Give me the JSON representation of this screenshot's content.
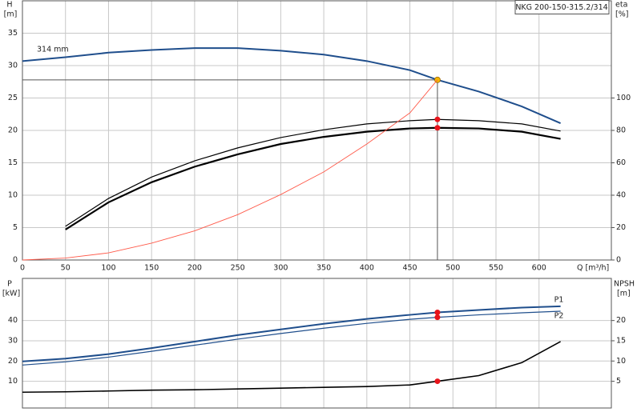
{
  "chart_data": [
    {
      "type": "line",
      "title": "NKG 200-150-315.2/314",
      "annotation": "314 mm",
      "y_label": "H",
      "y_unit": "[m]",
      "y2_label": "eta",
      "y2_unit": "[%]",
      "x_label": "Q [m³/h]",
      "xlim": [
        0,
        684
      ],
      "xticks": [
        0,
        50,
        100,
        150,
        200,
        250,
        300,
        350,
        400,
        450,
        500,
        550,
        600
      ],
      "ylim": [
        0,
        40
      ],
      "yticks": [
        0,
        5,
        10,
        15,
        20,
        25,
        30,
        35
      ],
      "y2lim": [
        0,
        160
      ],
      "y2ticks": [
        0,
        20,
        40,
        60,
        80,
        100
      ],
      "grid": true,
      "duty_point": {
        "x": 482,
        "y": 27.8
      },
      "series": [
        {
          "color": "#1f4e8c",
          "width": 2,
          "marker_color": "#f5b800",
          "x": [
            0,
            50,
            100,
            150,
            200,
            250,
            300,
            350,
            400,
            450,
            482,
            530,
            580,
            625
          ],
          "values": [
            30.7,
            31.3,
            32.0,
            32.4,
            32.7,
            32.7,
            32.3,
            31.7,
            30.7,
            29.3,
            27.8,
            26.0,
            23.7,
            21.1
          ]
        },
        {
          "color": "#000000",
          "width": 1.2,
          "axis": "y2",
          "marker_color": "#e8141b",
          "x": [
            50,
            100,
            150,
            200,
            250,
            300,
            350,
            400,
            450,
            482,
            530,
            580,
            625
          ],
          "values": [
            20.8,
            38,
            51.2,
            61.2,
            69.2,
            75.6,
            80.4,
            84,
            86,
            86.8,
            86,
            84,
            79.6
          ]
        },
        {
          "color": "#000000",
          "width": 2.2,
          "axis": "y2",
          "marker_color": "#e8141b",
          "x": [
            50,
            100,
            150,
            200,
            250,
            300,
            350,
            400,
            450,
            482,
            530,
            580,
            625
          ],
          "values": [
            18.8,
            35.6,
            48,
            57.6,
            65.2,
            71.6,
            76,
            79.2,
            81.2,
            81.6,
            81.2,
            79.2,
            74.8
          ]
        },
        {
          "color": "#ff5a4a",
          "width": 0.9,
          "x": [
            0,
            50,
            100,
            150,
            200,
            250,
            300,
            350,
            400,
            450,
            482
          ],
          "values": [
            0,
            0.3,
            1.1,
            2.6,
            4.5,
            7.0,
            10.1,
            13.6,
            17.9,
            22.7,
            27.8
          ]
        }
      ]
    },
    {
      "type": "line",
      "y_label": "P",
      "y_unit": "[kW]",
      "y2_label": "NPSH",
      "y2_unit": "[m]",
      "xlim": [
        0,
        684
      ],
      "xticks": [
        0,
        50,
        100,
        150,
        200,
        250,
        300,
        350,
        400,
        450,
        500,
        550,
        600
      ],
      "ylim": [
        -3.2,
        60.8
      ],
      "yticks": [
        10,
        20,
        30,
        40
      ],
      "y2lim": [
        -1.6,
        30.4
      ],
      "y2ticks": [
        5,
        10,
        15,
        20
      ],
      "grid": true,
      "duty_point": {
        "x": 482
      },
      "series": [
        {
          "name": "P1",
          "color": "#1f4e8c",
          "width": 2,
          "marker_color": "#e8141b",
          "x": [
            0,
            50,
            100,
            150,
            200,
            250,
            300,
            350,
            400,
            450,
            482,
            530,
            580,
            625
          ],
          "values": [
            19.8,
            21.2,
            23.4,
            26.4,
            29.6,
            32.8,
            35.6,
            38.4,
            40.8,
            42.8,
            44.0,
            45.2,
            46.4,
            47.0
          ]
        },
        {
          "name": "P2",
          "color": "#1f4e8c",
          "width": 1.2,
          "marker_color": "#e8141b",
          "x": [
            0,
            50,
            100,
            150,
            200,
            250,
            300,
            350,
            400,
            450,
            482,
            530,
            580,
            625
          ],
          "values": [
            18.0,
            19.6,
            21.9,
            24.8,
            27.8,
            30.8,
            33.6,
            36.2,
            38.6,
            40.6,
            41.6,
            42.8,
            43.8,
            44.6
          ]
        },
        {
          "color": "#000000",
          "width": 1.6,
          "axis": "y2",
          "marker_color": "#e8141b",
          "x": [
            0,
            50,
            100,
            150,
            200,
            250,
            300,
            350,
            400,
            450,
            482,
            530,
            580,
            625
          ],
          "values": [
            2.3,
            2.4,
            2.6,
            2.8,
            2.9,
            3.1,
            3.3,
            3.5,
            3.7,
            4.1,
            5.0,
            6.4,
            9.6,
            14.8
          ]
        }
      ]
    }
  ]
}
